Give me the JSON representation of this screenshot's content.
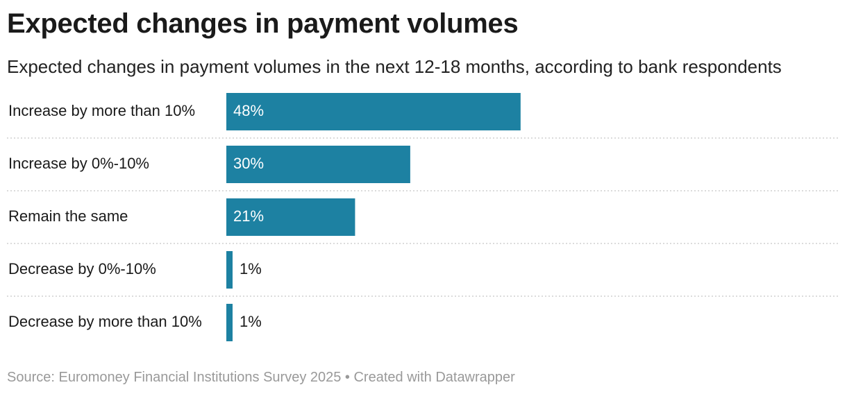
{
  "header": {
    "title": "Expected changes in payment volumes",
    "subtitle": "Expected changes in payment volumes in the next 12-18 months, according to bank respondents"
  },
  "footer": {
    "source": "Source: Euromoney Financial Institutions Survey 2025 • Created with Datawrapper"
  },
  "colors": {
    "bar": "#1d81a2",
    "label_inside": "#ffffff",
    "label_outside": "#1a1a1a",
    "divider": "#cfcfcf"
  },
  "chart_data": {
    "type": "bar",
    "orientation": "horizontal",
    "title": "Expected changes in payment volumes",
    "subtitle": "Expected changes in payment volumes in the next 12-18 months, according to bank respondents",
    "categories": [
      "Increase by more than 10%",
      "Increase by 0%-10%",
      "Remain the same",
      "Decrease by 0%-10%",
      "Decrease by more than 10%"
    ],
    "values": [
      48,
      30,
      21,
      1,
      1
    ],
    "value_labels": [
      "48%",
      "30%",
      "21%",
      "1%",
      "1%"
    ],
    "unit": "%",
    "xlim": [
      0,
      100
    ],
    "grid": false,
    "legend": "none"
  }
}
